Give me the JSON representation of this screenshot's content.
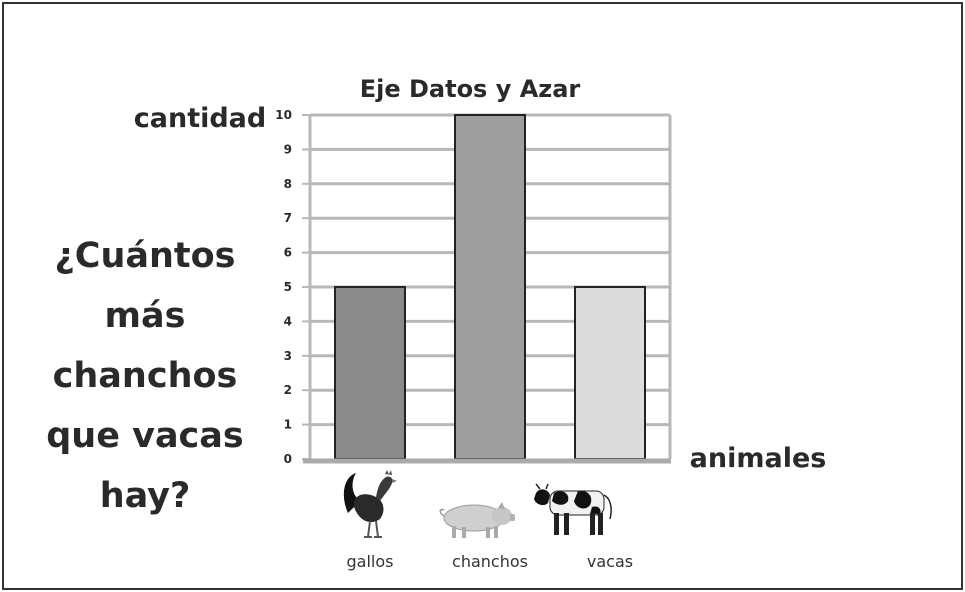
{
  "question": "¿Cuántos\nmás chanchos\nque vacas\nhay?",
  "chart_data": {
    "type": "bar",
    "title": "Eje Datos y Azar",
    "ylabel": "cantidad",
    "xlabel": "animales",
    "categories": [
      "gallos",
      "chanchos",
      "vacas"
    ],
    "values": [
      5,
      10,
      5
    ],
    "ylim": [
      0,
      10
    ],
    "yticks": [
      0,
      1,
      2,
      3,
      4,
      5,
      6,
      7,
      8,
      9,
      10
    ],
    "grid": true,
    "bar_colors": [
      "#8a8a8a",
      "#9e9e9e",
      "#dcdcdc"
    ],
    "icons": [
      "rooster-icon",
      "pig-icon",
      "cow-icon"
    ]
  }
}
